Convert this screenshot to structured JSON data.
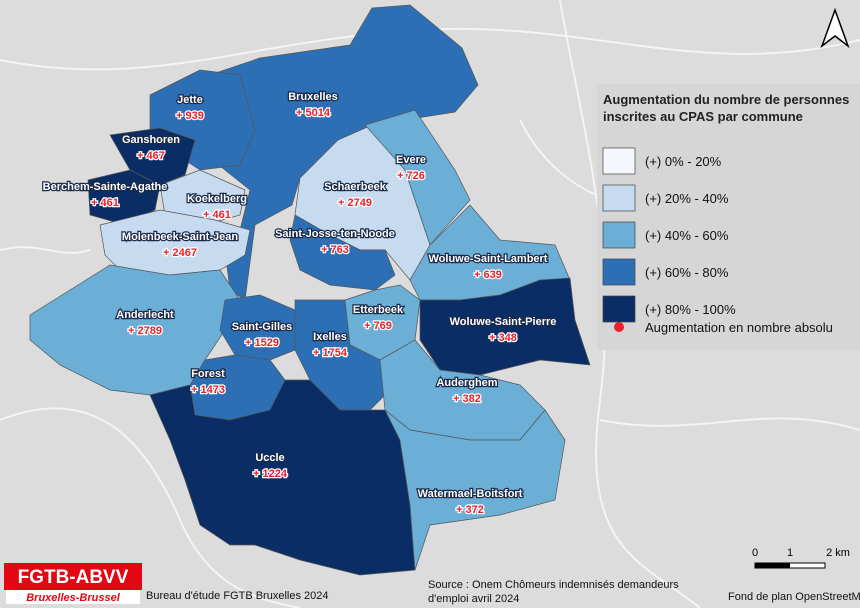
{
  "legend": {
    "title_lines": [
      "Augmentation du nombre de personnes",
      "inscrites au CPAS par commune"
    ],
    "classes": [
      {
        "label": "(+) 0% - 20%",
        "color": "#f4f8fc"
      },
      {
        "label": "(+) 20% - 40%",
        "color": "#c6dbef"
      },
      {
        "label": "(+) 40% - 60%",
        "color": "#6baed6"
      },
      {
        "label": "(+) 60% - 80%",
        "color": "#2c6fb5"
      },
      {
        "label": "(+) 80% - 100%",
        "color": "#0b2d66"
      }
    ],
    "point": {
      "label": "Augmentation en nombre absolu",
      "color": "#e8212a"
    }
  },
  "communes": [
    {
      "name": "Bruxelles",
      "value_label": "+ 5014",
      "color": "#2c6fb5"
    },
    {
      "name": "Jette",
      "value_label": "+ 939",
      "color": "#2c6fb5"
    },
    {
      "name": "Ganshoren",
      "value_label": "+ 467",
      "color": "#0b2d66"
    },
    {
      "name": "Berchem-Sainte-Agathe",
      "value_label": "+ 461",
      "color": "#0b2d66"
    },
    {
      "name": "Koekelberg",
      "value_label": "+ 461",
      "color": "#c6dbef"
    },
    {
      "name": "Molenbeek-Saint-Jean",
      "value_label": "+ 2467",
      "color": "#c6dbef"
    },
    {
      "name": "Schaerbeek",
      "value_label": "+ 2749",
      "color": "#c6dbef"
    },
    {
      "name": "Evere",
      "value_label": "+ 726",
      "color": "#6baed6"
    },
    {
      "name": "Saint-Josse-ten-Noode",
      "value_label": "+ 763",
      "color": "#2c6fb5"
    },
    {
      "name": "Woluwe-Saint-Lambert",
      "value_label": "+ 639",
      "color": "#6baed6"
    },
    {
      "name": "Woluwe-Saint-Pierre",
      "value_label": "+ 348",
      "color": "#0b2d66"
    },
    {
      "name": "Etterbeek",
      "value_label": "+ 769",
      "color": "#6baed6"
    },
    {
      "name": "Anderlecht",
      "value_label": "+ 2789",
      "color": "#6baed6"
    },
    {
      "name": "Saint-Gilles",
      "value_label": "+ 1529",
      "color": "#2c6fb5"
    },
    {
      "name": "Ixelles",
      "value_label": "+ 1754",
      "color": "#2c6fb5"
    },
    {
      "name": "Forest",
      "value_label": "+ 1473",
      "color": "#2c6fb5"
    },
    {
      "name": "Auderghem",
      "value_label": "+ 382",
      "color": "#6baed6"
    },
    {
      "name": "Uccle",
      "value_label": "+ 1224",
      "color": "#0b2d66"
    },
    {
      "name": "Watermael-Boitsfort",
      "value_label": "+ 372",
      "color": "#6baed6"
    }
  ],
  "scale": {
    "labels": [
      "0",
      "1",
      "2 km"
    ]
  },
  "footer": {
    "logo": "FGTB-ABVV",
    "logo_sub": "Bruxelles-Brussel",
    "credit": "Bureau d'étude FGTB Bruxelles 2024",
    "source_lines": [
      "Source : Onem Chômeurs indemnisés demandeurs",
      "d'emploi avril 2024"
    ],
    "basemap": "Fond de plan OpenStreetMap"
  }
}
